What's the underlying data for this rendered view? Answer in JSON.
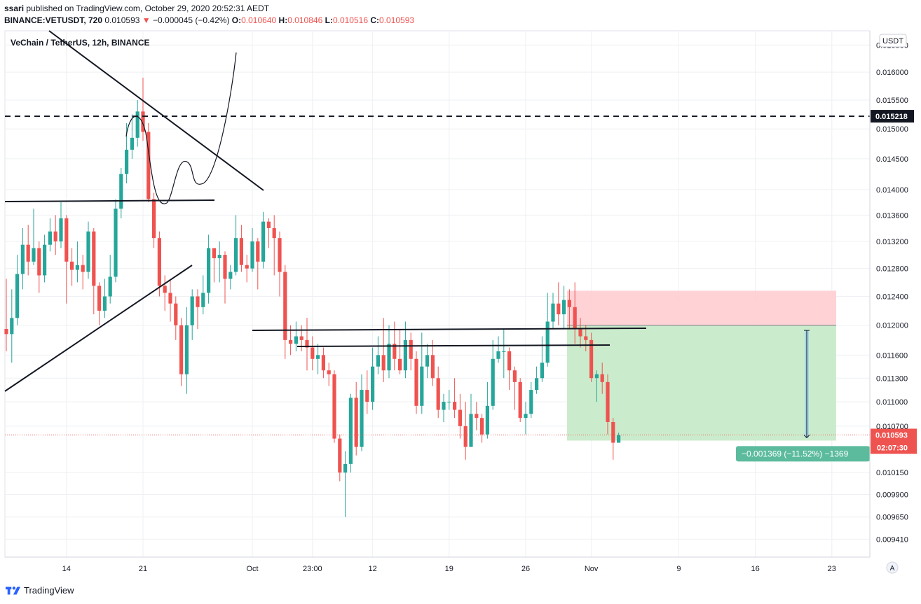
{
  "header": {
    "author": "ssari",
    "published_text": "published on TradingView.com, October 29, 2020 20:52:31 AEDT",
    "symbol_line": "BINANCE:VETUSDT, 720",
    "last": "0.010593",
    "change_arrow": "▼",
    "change": "−0.000045 (−0.42%)",
    "o_label": "O:",
    "o": "0.010640",
    "h_label": "H:",
    "h": "0.010846",
    "l_label": "L:",
    "l": "0.010516",
    "c_label": "C:",
    "c": "0.010593"
  },
  "footer": {
    "brand": "TradingView"
  },
  "chart_data": {
    "type": "candlestick",
    "title": "VeChain / TetherUS, 12h, BINANCE",
    "currency_label": "USDT",
    "scale_button": "A",
    "y_scale": "log",
    "ylim": [
      0.00922,
      0.01677
    ],
    "y_ticks": [
      "0.016500",
      "0.016000",
      "0.015500",
      "0.015000",
      "0.014500",
      "0.014000",
      "0.013600",
      "0.013200",
      "0.012800",
      "0.012400",
      "0.012000",
      "0.011600",
      "0.011300",
      "0.011000",
      "0.010700",
      "0.010150",
      "0.009900",
      "0.009650",
      "0.009410"
    ],
    "y_tick_values": [
      0.0165,
      0.016,
      0.0155,
      0.015,
      0.0145,
      0.014,
      0.0136,
      0.0132,
      0.0128,
      0.0124,
      0.012,
      0.0116,
      0.0113,
      0.011,
      0.0107,
      0.01015,
      0.0099,
      0.00965,
      0.00941
    ],
    "x_ticks": [
      {
        "label": "14",
        "bar": 11
      },
      {
        "label": "21",
        "bar": 25
      },
      {
        "label": "Oct",
        "bar": 45
      },
      {
        "label": "23:00",
        "bar": 56
      },
      {
        "label": "12",
        "bar": 67
      },
      {
        "label": "19",
        "bar": 81
      },
      {
        "label": "26",
        "bar": 95
      },
      {
        "label": "Nov",
        "bar": 107
      },
      {
        "label": "9",
        "bar": 123
      },
      {
        "label": "16",
        "bar": 137
      },
      {
        "label": "23",
        "bar": 151
      }
    ],
    "candles": [
      [
        0.01195,
        0.01188,
        0.01265,
        0.01165
      ],
      [
        0.01188,
        0.0121,
        0.0125,
        0.0115
      ],
      [
        0.0121,
        0.01272,
        0.013,
        0.012
      ],
      [
        0.01272,
        0.01315,
        0.0134,
        0.0125
      ],
      [
        0.01315,
        0.0129,
        0.01345,
        0.0127
      ],
      [
        0.0129,
        0.0131,
        0.0137,
        0.01285
      ],
      [
        0.0131,
        0.0127,
        0.0132,
        0.01245
      ],
      [
        0.0127,
        0.01315,
        0.0133,
        0.0126
      ],
      [
        0.01315,
        0.01335,
        0.01355,
        0.01305
      ],
      [
        0.01335,
        0.0132,
        0.0136,
        0.013
      ],
      [
        0.0132,
        0.01355,
        0.0138,
        0.0131
      ],
      [
        0.01355,
        0.0129,
        0.0136,
        0.0123
      ],
      [
        0.0129,
        0.01278,
        0.0131,
        0.01255
      ],
      [
        0.01278,
        0.01285,
        0.0132,
        0.0126
      ],
      [
        0.01285,
        0.01275,
        0.013,
        0.0125
      ],
      [
        0.01275,
        0.01335,
        0.0135,
        0.01265
      ],
      [
        0.01335,
        0.01255,
        0.0134,
        0.01215
      ],
      [
        0.01255,
        0.0122,
        0.0126,
        0.012
      ],
      [
        0.0122,
        0.0124,
        0.01265,
        0.0121
      ],
      [
        0.0124,
        0.01268,
        0.013,
        0.0123
      ],
      [
        0.01268,
        0.0137,
        0.01385,
        0.0126
      ],
      [
        0.0137,
        0.01425,
        0.01435,
        0.01355
      ],
      [
        0.01425,
        0.01465,
        0.0151,
        0.0141
      ],
      [
        0.01465,
        0.01485,
        0.01525,
        0.0145
      ],
      [
        0.01485,
        0.0153,
        0.0155,
        0.0147
      ],
      [
        0.0153,
        0.01495,
        0.0159,
        0.0148
      ],
      [
        0.01495,
        0.01385,
        0.0151,
        0.0138
      ],
      [
        0.01385,
        0.01325,
        0.01395,
        0.0131
      ],
      [
        0.01325,
        0.01255,
        0.01335,
        0.0124
      ],
      [
        0.01255,
        0.01245,
        0.0127,
        0.0122
      ],
      [
        0.01245,
        0.0123,
        0.01265,
        0.01205
      ],
      [
        0.0123,
        0.012,
        0.0124,
        0.0118
      ],
      [
        0.012,
        0.01135,
        0.0121,
        0.0112
      ],
      [
        0.01135,
        0.012,
        0.01225,
        0.0111
      ],
      [
        0.012,
        0.0124,
        0.0125,
        0.0118
      ],
      [
        0.0124,
        0.01225,
        0.0125,
        0.01195
      ],
      [
        0.01225,
        0.01245,
        0.0127,
        0.01215
      ],
      [
        0.01245,
        0.0131,
        0.0133,
        0.0123
      ],
      [
        0.0131,
        0.01295,
        0.0131,
        0.0126
      ],
      [
        0.01295,
        0.013,
        0.0132,
        0.0126
      ],
      [
        0.013,
        0.01265,
        0.01305,
        0.0123
      ],
      [
        0.01265,
        0.01275,
        0.01285,
        0.0125
      ],
      [
        0.01275,
        0.01325,
        0.0136,
        0.0127
      ],
      [
        0.01325,
        0.01285,
        0.01345,
        0.01275
      ],
      [
        0.01285,
        0.0128,
        0.013,
        0.0126
      ],
      [
        0.0128,
        0.0132,
        0.0134,
        0.01275
      ],
      [
        0.0132,
        0.0129,
        0.01325,
        0.0125
      ],
      [
        0.0129,
        0.0135,
        0.01365,
        0.0128
      ],
      [
        0.0135,
        0.0134,
        0.01355,
        0.0131
      ],
      [
        0.0134,
        0.01325,
        0.0136,
        0.0127
      ],
      [
        0.01325,
        0.01275,
        0.01335,
        0.0124
      ],
      [
        0.01275,
        0.0118,
        0.01285,
        0.01155
      ],
      [
        0.0118,
        0.01175,
        0.012,
        0.0116
      ],
      [
        0.01175,
        0.01185,
        0.01205,
        0.01165
      ],
      [
        0.01185,
        0.0118,
        0.012,
        0.01165
      ],
      [
        0.0118,
        0.0117,
        0.0121,
        0.0114
      ],
      [
        0.0117,
        0.01155,
        0.01185,
        0.0114
      ],
      [
        0.01155,
        0.0116,
        0.01175,
        0.01135
      ],
      [
        0.0116,
        0.0114,
        0.0117,
        0.0113
      ],
      [
        0.0114,
        0.01135,
        0.0115,
        0.0112
      ],
      [
        0.01135,
        0.01055,
        0.0114,
        0.0105
      ],
      [
        0.01055,
        0.01015,
        0.0106,
        0.01005
      ],
      [
        0.01015,
        0.01025,
        0.0104,
        0.00965
      ],
      [
        0.01025,
        0.01105,
        0.0111,
        0.01015
      ],
      [
        0.01105,
        0.01045,
        0.01125,
        0.01035
      ],
      [
        0.01045,
        0.01115,
        0.01135,
        0.0104
      ],
      [
        0.01115,
        0.011,
        0.0114,
        0.01085
      ],
      [
        0.011,
        0.01145,
        0.0117,
        0.0109
      ],
      [
        0.01145,
        0.0116,
        0.01185,
        0.01135
      ],
      [
        0.0116,
        0.0114,
        0.0121,
        0.01125
      ],
      [
        0.0114,
        0.01175,
        0.012,
        0.0113
      ],
      [
        0.01175,
        0.01155,
        0.01205,
        0.0114
      ],
      [
        0.01155,
        0.0114,
        0.01195,
        0.01135
      ],
      [
        0.0114,
        0.0118,
        0.01205,
        0.0113
      ],
      [
        0.0118,
        0.01155,
        0.0119,
        0.0114
      ],
      [
        0.01155,
        0.01095,
        0.01165,
        0.01085
      ],
      [
        0.01095,
        0.01145,
        0.0119,
        0.01085
      ],
      [
        0.01145,
        0.0116,
        0.01175,
        0.0113
      ],
      [
        0.0116,
        0.0113,
        0.0118,
        0.0112
      ],
      [
        0.0113,
        0.0109,
        0.01145,
        0.0108
      ],
      [
        0.0109,
        0.011,
        0.0111,
        0.01075
      ],
      [
        0.011,
        0.011,
        0.01115,
        0.0109
      ],
      [
        0.011,
        0.0109,
        0.0113,
        0.0108
      ],
      [
        0.0109,
        0.0107,
        0.0111,
        0.01055
      ],
      [
        0.0107,
        0.01045,
        0.011,
        0.0103
      ],
      [
        0.01045,
        0.01085,
        0.0111,
        0.01045
      ],
      [
        0.01085,
        0.0108,
        0.011,
        0.01065
      ],
      [
        0.0108,
        0.0106,
        0.01085,
        0.0105
      ],
      [
        0.0106,
        0.01095,
        0.01125,
        0.01055
      ],
      [
        0.01095,
        0.01155,
        0.0118,
        0.0109
      ],
      [
        0.01155,
        0.01165,
        0.01185,
        0.0115
      ],
      [
        0.01165,
        0.01165,
        0.01195,
        0.0113
      ],
      [
        0.01165,
        0.0114,
        0.0117,
        0.01115
      ],
      [
        0.0114,
        0.01125,
        0.01145,
        0.0109
      ],
      [
        0.01125,
        0.0108,
        0.0113,
        0.01075
      ],
      [
        0.0108,
        0.01085,
        0.011,
        0.0106
      ],
      [
        0.01085,
        0.01115,
        0.01125,
        0.0108
      ],
      [
        0.01115,
        0.0113,
        0.01145,
        0.0111
      ],
      [
        0.0113,
        0.0115,
        0.01185,
        0.01125
      ],
      [
        0.0115,
        0.01205,
        0.01245,
        0.01145
      ],
      [
        0.01205,
        0.0123,
        0.01245,
        0.01195
      ],
      [
        0.0123,
        0.01215,
        0.0126,
        0.012
      ],
      [
        0.01215,
        0.01235,
        0.01255,
        0.01195
      ],
      [
        0.01235,
        0.01225,
        0.0125,
        0.01195
      ],
      [
        0.01225,
        0.01195,
        0.0126,
        0.01175
      ],
      [
        0.01195,
        0.01185,
        0.0121,
        0.0117
      ],
      [
        0.01185,
        0.0118,
        0.012,
        0.01165
      ],
      [
        0.0118,
        0.0113,
        0.0119,
        0.01125
      ],
      [
        0.0113,
        0.01135,
        0.0114,
        0.011
      ],
      [
        0.01135,
        0.01125,
        0.0115,
        0.0111
      ],
      [
        0.01125,
        0.01075,
        0.01135,
        0.0106
      ],
      [
        0.01075,
        0.0105,
        0.0108,
        0.0103
      ],
      [
        0.0105,
        0.01059,
        0.01062,
        0.01052
      ]
    ],
    "last_price": "0.010593",
    "countdown": "02:07:30",
    "horizontal_level": "0.015218",
    "position": {
      "type": "short",
      "entry": 0.012,
      "stop": 0.01248,
      "target": 0.010593
    },
    "measure": {
      "from": 0.01193,
      "to": 0.01056,
      "label": "−0.001369 (−11.52%) −1369"
    },
    "colors": {
      "up": "#26a69a",
      "down": "#ef5350",
      "grid": "#eef0f3",
      "axis": "#787b86",
      "stop_zone": "#ffcdd2",
      "target_zone": "#c8ebc9",
      "measure_label": "#5cbb9d"
    }
  }
}
